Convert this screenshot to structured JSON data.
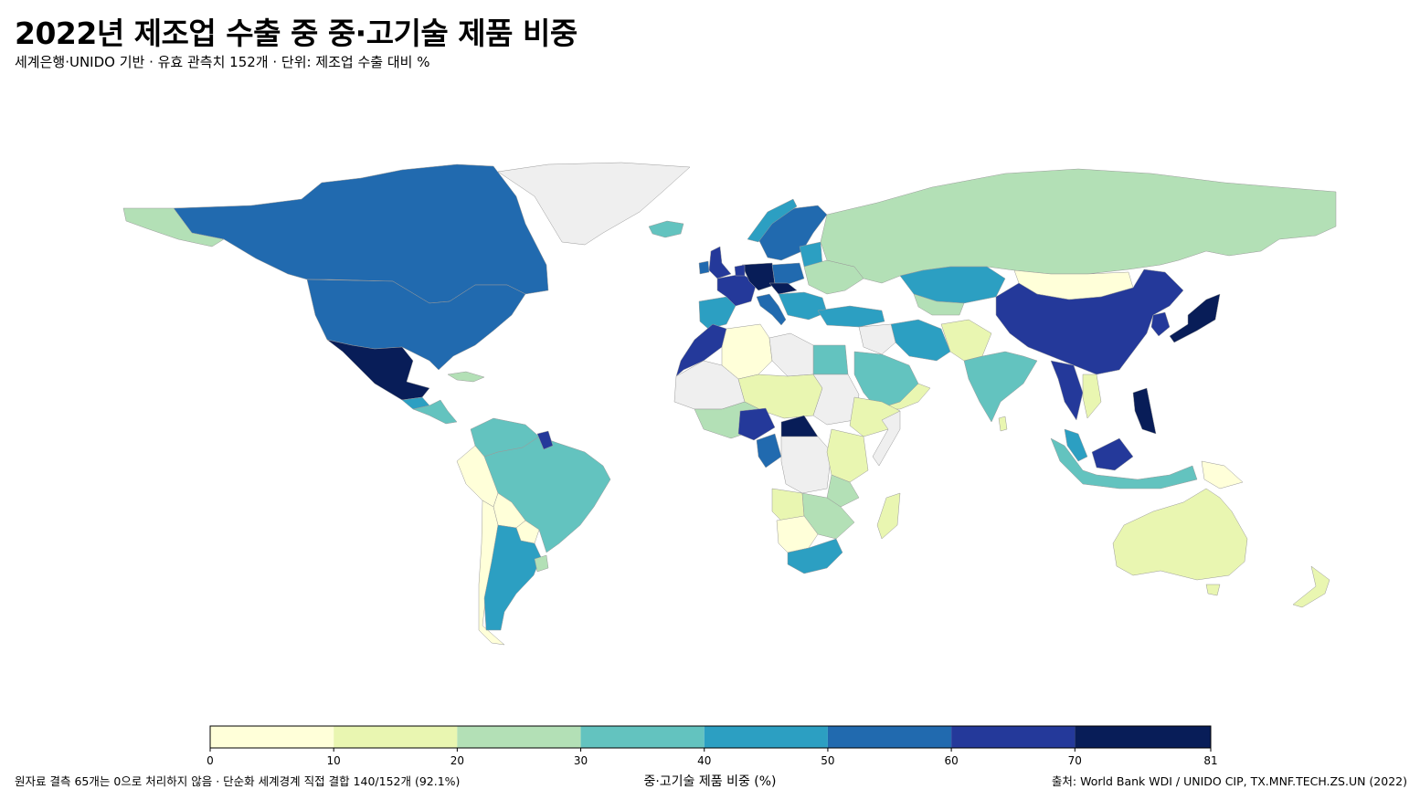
{
  "header": {
    "title": "2022년 제조업 수출 중 중·고기술 제품 비중",
    "subtitle": "세계은행·UNIDO 기반 · 유효 관측치 152개 · 단위: 제조업 수출 대비 %"
  },
  "legend": {
    "title": "중·고기술 제품 비중 (%)",
    "ticks": [
      "0",
      "10",
      "20",
      "30",
      "40",
      "50",
      "60",
      "70",
      "81"
    ],
    "bins": [
      {
        "from": 0,
        "to": 10,
        "color": "#ffffd9"
      },
      {
        "from": 10,
        "to": 20,
        "color": "#e9f6b1"
      },
      {
        "from": 20,
        "to": 30,
        "color": "#b3e0b6"
      },
      {
        "from": 30,
        "to": 40,
        "color": "#63c3bf"
      },
      {
        "from": 40,
        "to": 50,
        "color": "#2c9fc2"
      },
      {
        "from": 50,
        "to": 60,
        "color": "#216aaf"
      },
      {
        "from": 60,
        "to": 70,
        "color": "#24399a"
      },
      {
        "from": 70,
        "to": 81,
        "color": "#081d58"
      }
    ],
    "no_data_color": "#efefef"
  },
  "footer": {
    "note": "원자료 결측 65개는 0으로 처리하지 않음 · 단순화 세계경계 직접 결합 140/152개 (92.1%)",
    "source": "출처: World Bank WDI / UNIDO CIP, TX.MNF.TECH.ZS.UN (2022)"
  }
}
